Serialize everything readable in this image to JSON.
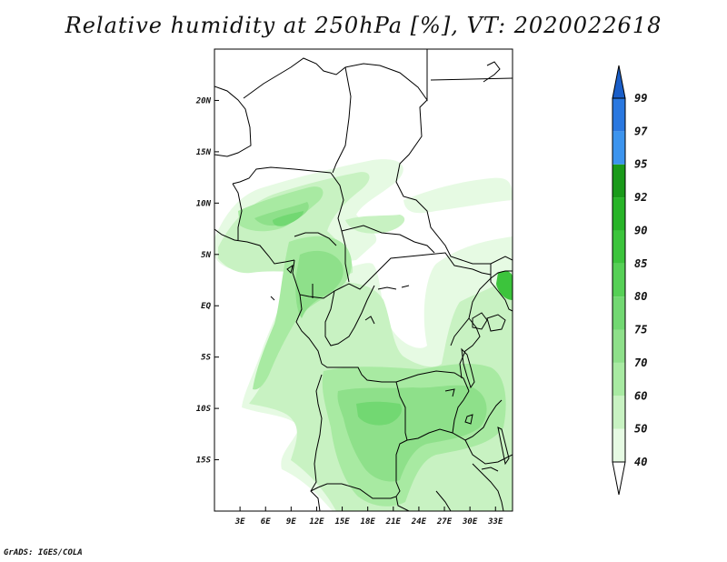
{
  "title": "Relative humidity at 250hPa [%], VT: 2020022618",
  "credit": "GrADS: IGES/COLA",
  "map": {
    "lon_range": [
      0,
      35
    ],
    "lat_range": [
      -20,
      25
    ],
    "x_ticks": [
      "3E",
      "6E",
      "9E",
      "12E",
      "15E",
      "18E",
      "21E",
      "24E",
      "27E",
      "30E",
      "33E"
    ],
    "x_tick_values": [
      3,
      6,
      9,
      12,
      15,
      18,
      21,
      24,
      27,
      30,
      33
    ],
    "y_ticks": [
      "20N",
      "15N",
      "10N",
      "5N",
      "EQ",
      "5S",
      "10S",
      "15S"
    ],
    "y_tick_values": [
      20,
      15,
      10,
      5,
      0,
      -5,
      -10,
      -15
    ]
  },
  "colorbar": {
    "labels": [
      "40",
      "50",
      "60",
      "70",
      "75",
      "80",
      "85",
      "90",
      "92",
      "95",
      "97",
      "99"
    ],
    "colors": [
      "#e6fae3",
      "#c8f2c2",
      "#a8eaa2",
      "#8ee08a",
      "#72d872",
      "#56d056",
      "#3cc43c",
      "#28b428",
      "#1a9a1a",
      "#3c94ee",
      "#2a78e0",
      "#1a5ec8"
    ]
  }
}
